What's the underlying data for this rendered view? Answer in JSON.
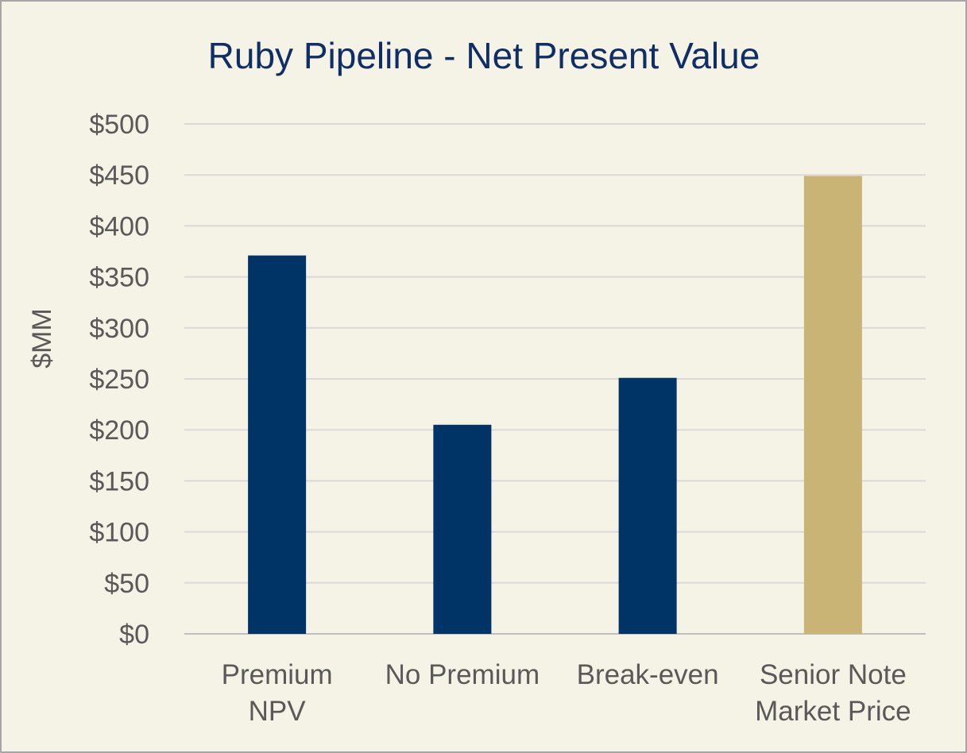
{
  "chart_data": {
    "type": "bar",
    "title": "Ruby Pipeline - Net Present Value",
    "xlabel": "",
    "ylabel": "$MM",
    "categories": [
      [
        "Premium",
        "NPV"
      ],
      [
        "No Premium"
      ],
      [
        "Break-even"
      ],
      [
        "Senior Note",
        "Market Price"
      ]
    ],
    "values": [
      371,
      205,
      251,
      449
    ],
    "bar_colors": [
      "#003366",
      "#003366",
      "#003366",
      "#c9b475"
    ],
    "ylim": [
      0,
      500
    ],
    "yticks": [
      0,
      50,
      100,
      150,
      200,
      250,
      300,
      350,
      400,
      450,
      500
    ],
    "ytick_labels": [
      "$0",
      "$50",
      "$100",
      "$150",
      "$200",
      "$250",
      "$300",
      "$350",
      "$400",
      "$450",
      "$500"
    ],
    "grid": true,
    "legend": "none"
  },
  "colors": {
    "background": "#f5f2e6",
    "title": "#0f2e66",
    "text": "#595959",
    "gridline": "#d9d9d9"
  }
}
